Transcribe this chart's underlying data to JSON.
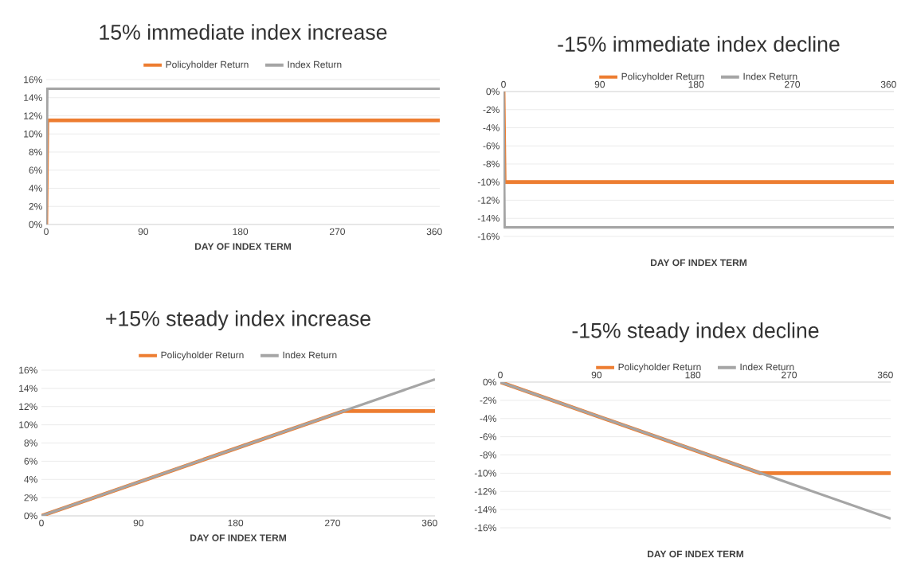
{
  "chart_data": [
    {
      "type": "line",
      "title": "15% immediate index increase",
      "xlabel": "DAY OF INDEX TERM",
      "xlim": [
        0,
        365
      ],
      "xticks": [
        0,
        90,
        180,
        270,
        360
      ],
      "ylim": [
        0,
        16
      ],
      "yticks": [
        {
          "value": 0,
          "label": "0%"
        },
        {
          "value": 2,
          "label": "2%"
        },
        {
          "value": 4,
          "label": "4%"
        },
        {
          "value": 6,
          "label": "6%"
        },
        {
          "value": 8,
          "label": "8%"
        },
        {
          "value": 10,
          "label": "10%"
        },
        {
          "value": 12,
          "label": "12%"
        },
        {
          "value": 14,
          "label": "14%"
        },
        {
          "value": 16,
          "label": "16%"
        }
      ],
      "grid": "y",
      "legend": "top",
      "series": [
        {
          "name": "Policyholder Return",
          "color": "#ed7d31",
          "x": [
            0,
            1,
            365
          ],
          "values": [
            0,
            11.5,
            11.5
          ]
        },
        {
          "name": "Index Return",
          "color": "#a5a5a5",
          "x": [
            0,
            1,
            365
          ],
          "values": [
            0,
            15,
            15
          ]
        }
      ]
    },
    {
      "type": "line",
      "title": "-15% immediate index decline",
      "xlabel": "DAY OF INDEX TERM",
      "xlim": [
        0,
        365
      ],
      "xticks": [
        0,
        90,
        180,
        270,
        360
      ],
      "ylim": [
        -16,
        0
      ],
      "yticks": [
        {
          "value": 0,
          "label": "0%"
        },
        {
          "value": -2,
          "label": "-2%"
        },
        {
          "value": -4,
          "label": "-4%"
        },
        {
          "value": -6,
          "label": "-6%"
        },
        {
          "value": -8,
          "label": "-8%"
        },
        {
          "value": -10,
          "label": "-10%"
        },
        {
          "value": -12,
          "label": "-12%"
        },
        {
          "value": -14,
          "label": "-14%"
        },
        {
          "value": -16,
          "label": "-16%"
        }
      ],
      "grid": "y",
      "legend": "top",
      "series": [
        {
          "name": "Policyholder Return",
          "color": "#ed7d31",
          "x": [
            0,
            1,
            365
          ],
          "values": [
            0,
            -10,
            -10
          ]
        },
        {
          "name": "Index Return",
          "color": "#a5a5a5",
          "x": [
            0,
            1,
            365
          ],
          "values": [
            0,
            -15,
            -15
          ]
        }
      ]
    },
    {
      "type": "line",
      "title": "+15% steady index increase",
      "xlabel": "DAY OF INDEX TERM",
      "xlim": [
        0,
        365
      ],
      "xticks": [
        0,
        90,
        180,
        270,
        360
      ],
      "ylim": [
        0,
        16
      ],
      "yticks": [
        {
          "value": 0,
          "label": "0%"
        },
        {
          "value": 2,
          "label": "2%"
        },
        {
          "value": 4,
          "label": "4%"
        },
        {
          "value": 6,
          "label": "6%"
        },
        {
          "value": 8,
          "label": "8%"
        },
        {
          "value": 10,
          "label": "10%"
        },
        {
          "value": 12,
          "label": "12%"
        },
        {
          "value": 14,
          "label": "14%"
        },
        {
          "value": 16,
          "label": "16%"
        }
      ],
      "grid": "y",
      "legend": "top",
      "series": [
        {
          "name": "Policyholder Return",
          "color": "#ed7d31",
          "x": [
            0,
            280,
            365
          ],
          "values": [
            0,
            11.5,
            11.5
          ]
        },
        {
          "name": "Index Return",
          "color": "#a5a5a5",
          "x": [
            0,
            365
          ],
          "values": [
            0,
            15
          ]
        }
      ]
    },
    {
      "type": "line",
      "title": "-15% steady index decline",
      "xlabel": "DAY OF INDEX TERM",
      "xlim": [
        0,
        365
      ],
      "xticks": [
        0,
        90,
        180,
        270,
        360
      ],
      "ylim": [
        -16,
        0
      ],
      "yticks": [
        {
          "value": 0,
          "label": "0%"
        },
        {
          "value": -2,
          "label": "-2%"
        },
        {
          "value": -4,
          "label": "-4%"
        },
        {
          "value": -6,
          "label": "-6%"
        },
        {
          "value": -8,
          "label": "-8%"
        },
        {
          "value": -10,
          "label": "-10%"
        },
        {
          "value": -12,
          "label": "-12%"
        },
        {
          "value": -14,
          "label": "-14%"
        },
        {
          "value": -16,
          "label": "-16%"
        }
      ],
      "grid": "y",
      "legend": "top",
      "series": [
        {
          "name": "Policyholder Return",
          "color": "#ed7d31",
          "x": [
            0,
            243,
            365
          ],
          "values": [
            0,
            -10,
            -10
          ]
        },
        {
          "name": "Index Return",
          "color": "#a5a5a5",
          "x": [
            0,
            365
          ],
          "values": [
            0,
            -15
          ]
        }
      ]
    }
  ]
}
